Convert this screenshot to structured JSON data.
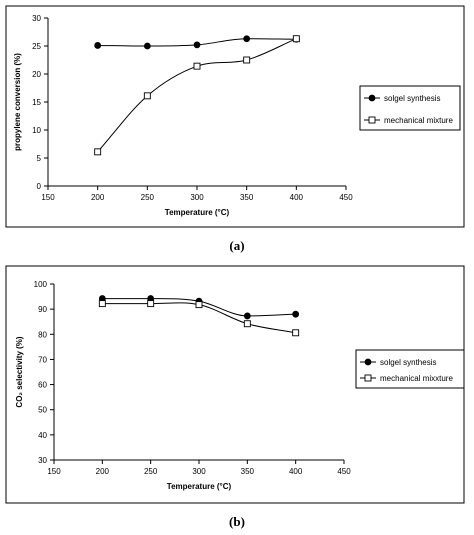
{
  "chart_data": [
    {
      "type": "line",
      "panel_label": "(a)",
      "xlabel": "Temperature (°C)",
      "ylabel": "propylene conversion (%)",
      "xlim": [
        150,
        450
      ],
      "ylim": [
        0,
        30
      ],
      "x_ticks": [
        150,
        200,
        250,
        300,
        350,
        400,
        450
      ],
      "y_ticks": [
        0,
        5,
        10,
        15,
        20,
        25,
        30
      ],
      "grid": false,
      "legend_position": "right",
      "x": [
        200,
        250,
        300,
        350,
        400
      ],
      "series": [
        {
          "name": "solgel synthesis",
          "marker": "filled-circle",
          "values": [
            25.1,
            25.0,
            25.2,
            26.3,
            26.2
          ]
        },
        {
          "name": "mechanical mixture",
          "marker": "open-square",
          "values": [
            6.1,
            16.1,
            21.4,
            22.5,
            26.3
          ]
        }
      ]
    },
    {
      "type": "line",
      "panel_label": "(b)",
      "xlabel": "Temperature (°C)",
      "ylabel": "CO₂ selectivity (%)",
      "xlim": [
        150,
        450
      ],
      "ylim": [
        30,
        100
      ],
      "x_ticks": [
        150,
        200,
        250,
        300,
        350,
        400,
        450
      ],
      "y_ticks": [
        30,
        40,
        50,
        60,
        70,
        80,
        90,
        100
      ],
      "grid": false,
      "legend_position": "right",
      "x": [
        200,
        250,
        300,
        350,
        400
      ],
      "series": [
        {
          "name": "solgel synthesis",
          "marker": "filled-circle",
          "values": [
            94.2,
            94.2,
            93.2,
            87.3,
            88.0
          ]
        },
        {
          "name": "mechanical mixxture",
          "marker": "open-square",
          "values": [
            92.2,
            92.2,
            91.8,
            84.2,
            80.6
          ]
        }
      ]
    }
  ]
}
